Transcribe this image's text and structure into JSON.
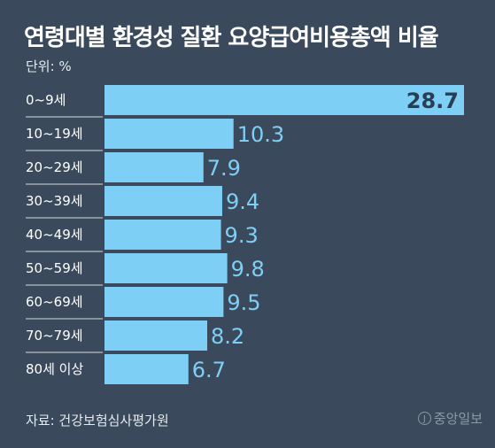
{
  "chart_data": {
    "type": "bar",
    "orientation": "horizontal",
    "title": "연령대별 환경성 질환 요양급여비용총액 비율",
    "unit_label": "단위: %",
    "categories": [
      "0~9세",
      "10~19세",
      "20~29세",
      "30~39세",
      "40~49세",
      "50~59세",
      "60~69세",
      "70~79세",
      "80세 이상"
    ],
    "values": [
      28.7,
      10.3,
      7.9,
      9.4,
      9.3,
      9.8,
      9.5,
      8.2,
      6.7
    ],
    "xlim": [
      0,
      28.7
    ],
    "grid": false,
    "source": "자료: 건강보험심사평가원"
  },
  "colors": {
    "background": "#3a4a5c",
    "bar": "#7ecff5",
    "value_label": "#7ecff5",
    "value_label_inside": "#2b3d52",
    "text": "#ffffff"
  },
  "logo": {
    "mark": "J",
    "text": "중앙일보",
    "icon": "joongang-logo-icon"
  }
}
